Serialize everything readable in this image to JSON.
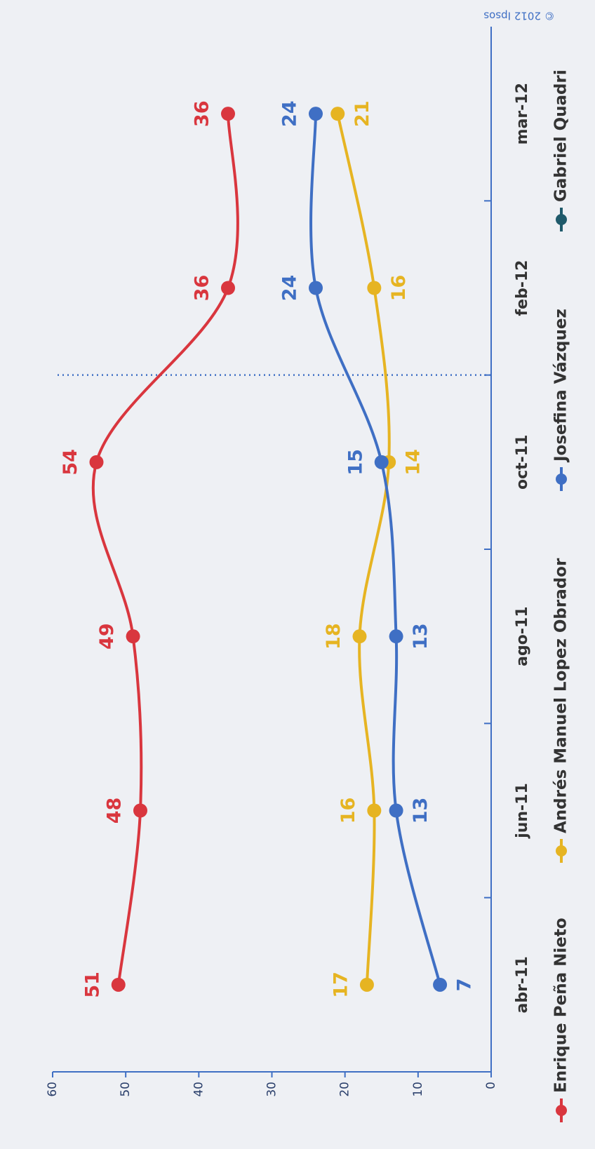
{
  "chart_data": {
    "type": "line",
    "categories": [
      "abr-11",
      "jun-11",
      "ago-11",
      "oct-11",
      "feb-12",
      "mar-12"
    ],
    "series": [
      {
        "name": "Enrique Peña Nieto",
        "color": "#d9363e",
        "values": [
          51,
          48,
          49,
          54,
          36,
          36
        ]
      },
      {
        "name": "Andrés Manuel Lopez Obrador",
        "color": "#e6b422",
        "values": [
          17,
          16,
          18,
          14,
          16,
          21
        ]
      },
      {
        "name": "Josefina Vázquez",
        "color": "#3f6fc4",
        "values": [
          7,
          13,
          13,
          15,
          24,
          24
        ]
      },
      {
        "name": "Gabriel Quadri",
        "color": "#1f5a6b",
        "values": [
          null,
          null,
          null,
          null,
          null,
          null
        ]
      }
    ],
    "ylim": [
      0,
      60
    ],
    "yticks": [
      0,
      10,
      20,
      30,
      40,
      50,
      60
    ],
    "annotations": [
      "© 2012 Ipsos"
    ]
  }
}
